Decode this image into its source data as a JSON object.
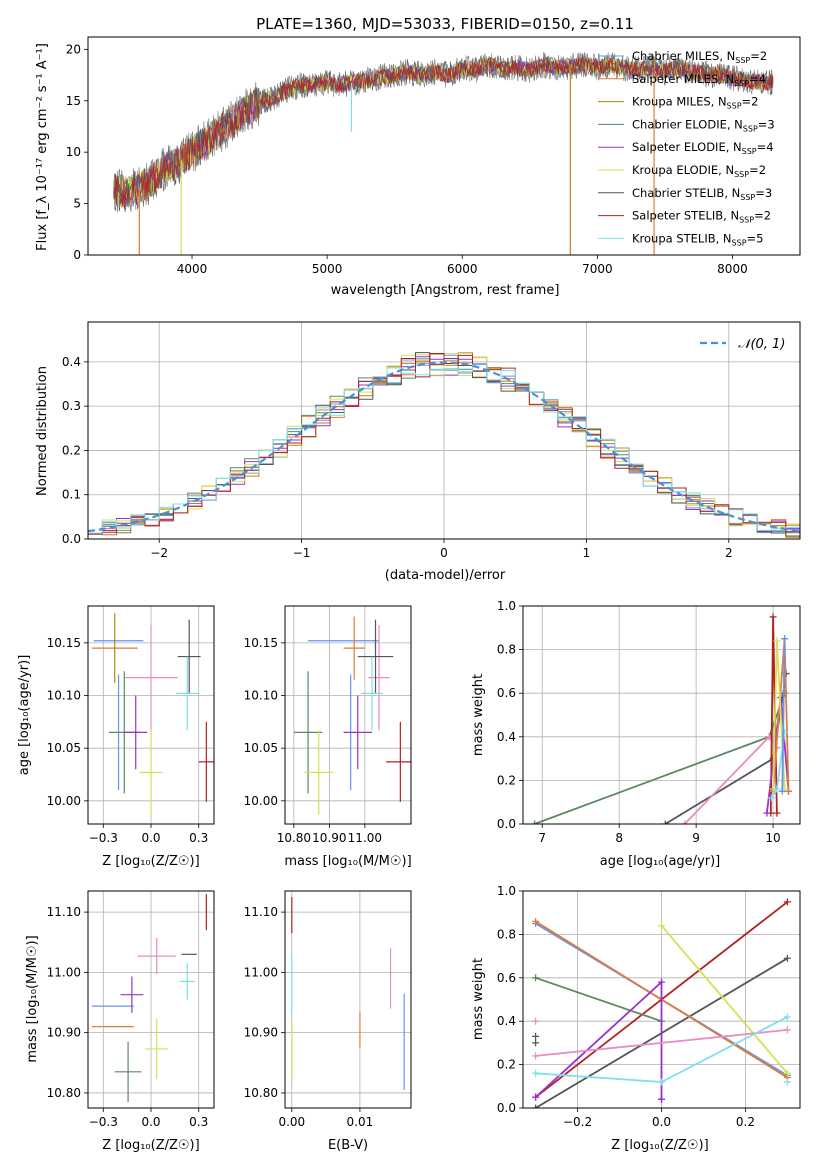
{
  "title": "PLATE=1360, MJD=53033, FIBERID=0150, z=0.11",
  "colors": {
    "blue": "#6495ed",
    "orange": "#e07b39",
    "brown": "#b8860b",
    "green": "#5b8a61",
    "purple": "#9932cc",
    "yellow": "#d4e157",
    "black": "#555555",
    "red": "#b22222",
    "cyan": "#80deea",
    "pink": "#e88cc4",
    "gray": "#808080",
    "grid": "#b0b0b0",
    "normal": "#4a90d9"
  },
  "chart_data": [
    {
      "id": "spectrum",
      "type": "line",
      "xlabel": "wavelength [Angstrom, rest frame]",
      "ylabel": "Flux [f_λ 10⁻¹⁷ erg cm⁻² s⁻¹ A⁻¹]",
      "xlim": [
        3230,
        8500
      ],
      "ylim": [
        0,
        21.2
      ],
      "xticks": [
        4000,
        5000,
        6000,
        7000,
        8000
      ],
      "yticks": [
        0,
        5,
        10,
        15,
        20
      ],
      "grid": false,
      "legend_position": "top-right",
      "continuum": [
        [
          3420,
          6.5
        ],
        [
          3500,
          6.0
        ],
        [
          3600,
          6.5
        ],
        [
          3700,
          7.2
        ],
        [
          3800,
          8.5
        ],
        [
          3900,
          9.0
        ],
        [
          4000,
          10.0
        ],
        [
          4100,
          11.0
        ],
        [
          4200,
          12.0
        ],
        [
          4300,
          13.0
        ],
        [
          4400,
          14.0
        ],
        [
          4500,
          14.8
        ],
        [
          4600,
          15.3
        ],
        [
          4700,
          16.0
        ],
        [
          4800,
          16.5
        ],
        [
          4900,
          16.5
        ],
        [
          5000,
          16.8
        ],
        [
          5100,
          16.5
        ],
        [
          5200,
          16.8
        ],
        [
          5300,
          17.0
        ],
        [
          5400,
          17.3
        ],
        [
          5500,
          17.5
        ],
        [
          5600,
          17.8
        ],
        [
          5700,
          17.5
        ],
        [
          5800,
          17.8
        ],
        [
          5900,
          17.5
        ],
        [
          6000,
          18.2
        ],
        [
          6100,
          18.0
        ],
        [
          6200,
          18.5
        ],
        [
          6300,
          18.0
        ],
        [
          6400,
          18.2
        ],
        [
          6500,
          18.0
        ],
        [
          6600,
          18.5
        ],
        [
          6700,
          18.2
        ],
        [
          6800,
          18.3
        ],
        [
          6900,
          18.5
        ],
        [
          7000,
          18.3
        ],
        [
          7100,
          18.5
        ],
        [
          7200,
          18.2
        ],
        [
          7300,
          18.0
        ],
        [
          7400,
          18.3
        ],
        [
          7500,
          17.8
        ],
        [
          7600,
          18.2
        ],
        [
          7700,
          17.8
        ],
        [
          7800,
          17.6
        ],
        [
          7900,
          17.5
        ],
        [
          8000,
          17.2
        ],
        [
          8100,
          17.0
        ],
        [
          8200,
          16.8
        ],
        [
          8300,
          16.8
        ]
      ],
      "spikes": [
        {
          "x": 3610,
          "y": 0,
          "color": "orange"
        },
        {
          "x": 3920,
          "y": 0,
          "color": "yellow"
        },
        {
          "x": 5180,
          "y": 12.0,
          "color": "cyan"
        },
        {
          "x": 6800,
          "y": 0,
          "color": "brown"
        },
        {
          "x": 7420,
          "y": 0,
          "color": "orange"
        }
      ],
      "series": [
        {
          "name": "Chabrier MILES, N_SSP=2",
          "color": "blue"
        },
        {
          "name": "Salpeter MILES, N_SSP=4",
          "color": "orange"
        },
        {
          "name": "Kroupa MILES, N_SSP=2",
          "color": "brown"
        },
        {
          "name": "Chabrier ELODIE, N_SSP=3",
          "color": "green"
        },
        {
          "name": "Salpeter ELODIE, N_SSP=4",
          "color": "purple"
        },
        {
          "name": "Kroupa ELODIE, N_SSP=2",
          "color": "yellow"
        },
        {
          "name": "Chabrier STELIB, N_SSP=3",
          "color": "black"
        },
        {
          "name": "Salpeter STELIB, N_SSP=2",
          "color": "red"
        },
        {
          "name": "Kroupa STELIB, N_SSP=5",
          "color": "cyan"
        }
      ]
    },
    {
      "id": "residuals",
      "type": "histogram",
      "xlabel": "(data-model)/error",
      "ylabel": "Normed distribution",
      "xlim": [
        -2.5,
        2.5
      ],
      "ylim": [
        0,
        0.49
      ],
      "xticks": [
        -2,
        -1,
        0,
        1,
        2
      ],
      "yticks": [
        0.0,
        0.1,
        0.2,
        0.3,
        0.4
      ],
      "grid": true,
      "legend_position": "top-right",
      "reference_curve": {
        "name": "𝒩(0, 1)",
        "mean": 0,
        "sigma": 1
      },
      "bin_width": 0.1,
      "series_colors": [
        "blue",
        "orange",
        "brown",
        "green",
        "purple",
        "yellow",
        "black",
        "red",
        "cyan"
      ]
    },
    {
      "id": "age-vs-z",
      "type": "errorbar",
      "xlabel": "Z [log₁₀(Z/Z☉)]",
      "ylabel": "age  [log₁₀(age/yr)]",
      "xlim": [
        -0.33,
        0.33
      ],
      "ylim": [
        9.978,
        10.185
      ],
      "xticks": [
        -0.25,
        0.0,
        0.25
      ],
      "yticks": [
        10.0,
        10.05,
        10.1,
        10.15
      ],
      "grid": true,
      "points": [
        {
          "x": -0.17,
          "y": 10.152,
          "xerr": 0.13,
          "yerr": 0.0,
          "color": "blue"
        },
        {
          "x": -0.19,
          "y": 10.145,
          "xerr": 0.12,
          "yerr": 0.0,
          "color": "orange"
        },
        {
          "x": -0.19,
          "y": 10.145,
          "xerr": 0.0,
          "yerr": 0.033,
          "color": "brown"
        },
        {
          "x": 0.0,
          "y": 10.117,
          "xerr": 0.14,
          "yerr": 0.05,
          "color": "pink"
        },
        {
          "x": 0.2,
          "y": 10.137,
          "xerr": 0.06,
          "yerr": 0.035,
          "color": "black"
        },
        {
          "x": 0.19,
          "y": 10.102,
          "xerr": 0.06,
          "yerr": 0.035,
          "color": "cyan"
        },
        {
          "x": -0.14,
          "y": 10.065,
          "xerr": 0.08,
          "yerr": 0.058,
          "color": "green"
        },
        {
          "x": -0.17,
          "y": 10.065,
          "xerr": 0.0,
          "yerr": 0.055,
          "color": "blue"
        },
        {
          "x": -0.08,
          "y": 10.065,
          "xerr": 0.06,
          "yerr": 0.035,
          "color": "purple"
        },
        {
          "x": 0.0,
          "y": 10.027,
          "xerr": 0.06,
          "yerr": 0.04,
          "color": "yellow"
        },
        {
          "x": 0.29,
          "y": 10.037,
          "xerr": 0.04,
          "yerr": 0.038,
          "color": "red"
        }
      ]
    },
    {
      "id": "age-vs-mass",
      "type": "errorbar",
      "xlabel": "mass [log₁₀(M/M☉)]",
      "ylabel": "",
      "xlim": [
        10.775,
        11.13
      ],
      "ylim": [
        9.978,
        10.185
      ],
      "xticks": [
        10.8,
        10.9,
        11.0
      ],
      "yticks": [
        10.0,
        10.05,
        10.1,
        10.15
      ],
      "grid": true,
      "points": [
        {
          "x": 10.94,
          "y": 10.152,
          "xerr": 0.1,
          "yerr": 0.0,
          "color": "blue"
        },
        {
          "x": 10.97,
          "y": 10.145,
          "xerr": 0.03,
          "yerr": 0.03,
          "color": "orange"
        },
        {
          "x": 11.04,
          "y": 10.117,
          "xerr": 0.03,
          "yerr": 0.05,
          "color": "pink"
        },
        {
          "x": 11.03,
          "y": 10.137,
          "xerr": 0.05,
          "yerr": 0.035,
          "color": "black"
        },
        {
          "x": 11.02,
          "y": 10.102,
          "xerr": 0.03,
          "yerr": 0.035,
          "color": "cyan"
        },
        {
          "x": 10.84,
          "y": 10.065,
          "xerr": 0.04,
          "yerr": 0.058,
          "color": "green"
        },
        {
          "x": 10.96,
          "y": 10.065,
          "xerr": 0.0,
          "yerr": 0.055,
          "color": "blue"
        },
        {
          "x": 10.98,
          "y": 10.065,
          "xerr": 0.04,
          "yerr": 0.035,
          "color": "purple"
        },
        {
          "x": 10.87,
          "y": 10.027,
          "xerr": 0.04,
          "yerr": 0.04,
          "color": "yellow"
        },
        {
          "x": 11.1,
          "y": 10.037,
          "xerr": 0.04,
          "yerr": 0.038,
          "color": "red"
        }
      ]
    },
    {
      "id": "weight-vs-age",
      "type": "line",
      "xlabel": "age  [log₁₀(age/yr)]",
      "ylabel": "mass weight",
      "xlim": [
        6.75,
        10.35
      ],
      "ylim": [
        0,
        1.0
      ],
      "xticks": [
        7,
        8,
        9,
        10
      ],
      "yticks": [
        0.0,
        0.2,
        0.4,
        0.6,
        0.8,
        1.0
      ],
      "grid": true,
      "series": [
        {
          "color": "green",
          "points": [
            [
              6.9,
              0.0
            ],
            [
              9.95,
              0.4
            ],
            [
              10.15,
              0.6
            ]
          ]
        },
        {
          "color": "black",
          "points": [
            [
              8.6,
              0.0
            ],
            [
              10.0,
              0.3
            ],
            [
              10.17,
              0.69
            ]
          ]
        },
        {
          "color": "pink",
          "points": [
            [
              8.85,
              0.0
            ],
            [
              9.95,
              0.4
            ],
            [
              10.05,
              0.35
            ]
          ]
        },
        {
          "color": "red",
          "points": [
            [
              9.97,
              0.05
            ],
            [
              10.0,
              0.95
            ],
            [
              10.05,
              0.05
            ]
          ]
        },
        {
          "color": "purple",
          "points": [
            [
              9.92,
              0.05
            ],
            [
              10.1,
              0.58
            ],
            [
              10.2,
              0.15
            ]
          ]
        },
        {
          "color": "orange",
          "points": [
            [
              10.0,
              0.15
            ],
            [
              10.15,
              0.85
            ],
            [
              10.2,
              0.15
            ]
          ]
        },
        {
          "color": "yellow",
          "points": [
            [
              10.0,
              0.16
            ],
            [
              10.05,
              0.84
            ],
            [
              10.15,
              0.16
            ]
          ]
        },
        {
          "color": "cyan",
          "points": [
            [
              9.98,
              0.12
            ],
            [
              10.05,
              0.16
            ],
            [
              10.15,
              0.42
            ]
          ]
        },
        {
          "color": "blue",
          "points": [
            [
              10.12,
              0.15
            ],
            [
              10.15,
              0.85
            ]
          ]
        }
      ]
    },
    {
      "id": "mass-vs-z",
      "type": "errorbar",
      "xlabel": "Z [log₁₀(Z/Z☉)]",
      "ylabel": "mass [log₁₀(M/M☉)]",
      "xlim": [
        -0.33,
        0.33
      ],
      "ylim": [
        10.775,
        11.135
      ],
      "xticks": [
        -0.25,
        0.0,
        0.25
      ],
      "yticks": [
        10.8,
        10.9,
        11.0,
        11.1
      ],
      "grid": true,
      "points": [
        {
          "x": -0.2,
          "y": 10.944,
          "xerr": 0.11,
          "yerr": 0.0,
          "color": "blue"
        },
        {
          "x": -0.2,
          "y": 10.91,
          "xerr": 0.11,
          "yerr": 0.0,
          "color": "orange"
        },
        {
          "x": -0.1,
          "y": 10.963,
          "xerr": 0.06,
          "yerr": 0.03,
          "color": "purple"
        },
        {
          "x": 0.03,
          "y": 11.027,
          "xerr": 0.1,
          "yerr": 0.03,
          "color": "pink"
        },
        {
          "x": 0.2,
          "y": 11.03,
          "xerr": 0.04,
          "yerr": 0.0,
          "color": "black"
        },
        {
          "x": 0.19,
          "y": 10.985,
          "xerr": 0.04,
          "yerr": 0.03,
          "color": "cyan"
        },
        {
          "x": 0.29,
          "y": 11.1,
          "xerr": 0.0,
          "yerr": 0.03,
          "color": "red"
        },
        {
          "x": -0.12,
          "y": 10.835,
          "xerr": 0.07,
          "yerr": 0.05,
          "color": "green"
        },
        {
          "x": 0.03,
          "y": 10.873,
          "xerr": 0.06,
          "yerr": 0.05,
          "color": "yellow"
        }
      ]
    },
    {
      "id": "mass-vs-ebv",
      "type": "errorbar",
      "xlabel": "E(B-V)",
      "ylabel": "",
      "xlim": [
        -0.001,
        0.0175
      ],
      "ylim": [
        10.775,
        11.135
      ],
      "xticks": [
        0.0,
        0.01
      ],
      "yticks": [
        10.8,
        10.9,
        11.0,
        11.1
      ],
      "grid": true,
      "points": [
        {
          "x": 0.0,
          "y": 11.095,
          "xerr": 0.0,
          "yerr": 0.03,
          "color": "red"
        },
        {
          "x": 0.0,
          "y": 10.98,
          "xerr": 0.0,
          "yerr": 0.05,
          "color": "cyan"
        },
        {
          "x": 0.0,
          "y": 10.87,
          "xerr": 0.0,
          "yerr": 0.05,
          "color": "yellow"
        },
        {
          "x": 0.01,
          "y": 10.905,
          "xerr": 0.0,
          "yerr": 0.03,
          "color": "orange"
        },
        {
          "x": 0.0145,
          "y": 10.99,
          "xerr": 0.0,
          "yerr": 0.05,
          "color": "pink"
        },
        {
          "x": 0.0165,
          "y": 10.885,
          "xerr": 0.0,
          "yerr": 0.08,
          "color": "blue"
        }
      ]
    },
    {
      "id": "weight-vs-z",
      "type": "line",
      "xlabel": "Z [log₁₀(Z/Z☉)]",
      "ylabel": "mass weight",
      "xlim": [
        -0.33,
        0.33
      ],
      "ylim": [
        0,
        1.0
      ],
      "xticks": [
        -0.2,
        0.0,
        0.2
      ],
      "yticks": [
        0.0,
        0.2,
        0.4,
        0.6,
        0.8,
        1.0
      ],
      "grid": true,
      "series": [
        {
          "color": "red",
          "points": [
            [
              -0.3,
              0.05
            ],
            [
              0.3,
              0.95
            ]
          ]
        },
        {
          "color": "black",
          "points": [
            [
              -0.3,
              0.0
            ],
            [
              0.3,
              0.69
            ]
          ]
        },
        {
          "color": "blue",
          "points": [
            [
              -0.3,
              0.85
            ],
            [
              0.3,
              0.15
            ]
          ]
        },
        {
          "color": "orange",
          "points": [
            [
              -0.3,
              0.86
            ],
            [
              0.3,
              0.14
            ]
          ]
        },
        {
          "color": "green",
          "points": [
            [
              -0.3,
              0.6
            ],
            [
              0.0,
              0.4
            ]
          ]
        },
        {
          "color": "purple",
          "points": [
            [
              -0.3,
              0.05
            ],
            [
              0.0,
              0.58
            ],
            [
              0.0,
              0.04
            ]
          ]
        },
        {
          "color": "yellow",
          "points": [
            [
              0.0,
              0.84
            ],
            [
              0.3,
              0.16
            ]
          ]
        },
        {
          "color": "pink",
          "points": [
            [
              -0.3,
              0.24
            ],
            [
              0.3,
              0.36
            ]
          ]
        },
        {
          "color": "cyan",
          "points": [
            [
              -0.3,
              0.16
            ],
            [
              0.0,
              0.12
            ],
            [
              0.3,
              0.42
            ]
          ]
        }
      ],
      "markers": [
        {
          "x": -0.3,
          "y": 0.33,
          "color": "black"
        },
        {
          "x": -0.3,
          "y": 0.3,
          "color": "black"
        },
        {
          "x": -0.3,
          "y": 0.4,
          "color": "pink"
        },
        {
          "x": 0.0,
          "y": 0.04,
          "color": "purple"
        },
        {
          "x": 0.3,
          "y": 0.12,
          "color": "cyan"
        }
      ]
    }
  ]
}
